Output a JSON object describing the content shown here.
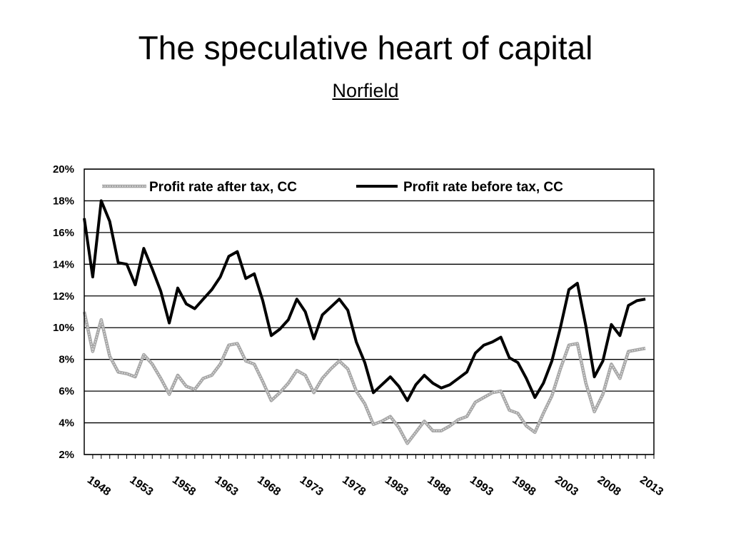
{
  "slide": {
    "title": "The speculative heart of capital",
    "subtitle": "Norfield"
  },
  "chart_data": {
    "type": "line",
    "title": "",
    "xlabel": "",
    "ylabel": "",
    "xlim": [
      1946,
      2013
    ],
    "ylim": [
      2,
      20
    ],
    "grid": true,
    "legend_position": "top",
    "y_ticks": [
      "2%",
      "4%",
      "6%",
      "8%",
      "10%",
      "12%",
      "14%",
      "16%",
      "18%",
      "20%"
    ],
    "x_ticks": [
      "1948",
      "1953",
      "1958",
      "1963",
      "1968",
      "1973",
      "1978",
      "1983",
      "1988",
      "1993",
      "1998",
      "2003",
      "2008",
      "2013"
    ],
    "x": [
      1946,
      1947,
      1948,
      1949,
      1950,
      1951,
      1952,
      1953,
      1954,
      1955,
      1956,
      1957,
      1958,
      1959,
      1960,
      1961,
      1962,
      1963,
      1964,
      1965,
      1966,
      1967,
      1968,
      1969,
      1970,
      1971,
      1972,
      1973,
      1974,
      1975,
      1976,
      1977,
      1978,
      1979,
      1980,
      1981,
      1982,
      1983,
      1984,
      1985,
      1986,
      1987,
      1988,
      1989,
      1990,
      1991,
      1992,
      1993,
      1994,
      1995,
      1996,
      1997,
      1998,
      1999,
      2000,
      2001,
      2002,
      2003,
      2004,
      2005,
      2006,
      2007,
      2008,
      2009,
      2010,
      2011,
      2012
    ],
    "series": [
      {
        "name": "Profit rate after tax, CC",
        "color": "#a6a6a6",
        "values": [
          11.0,
          8.5,
          10.5,
          8.2,
          7.2,
          7.1,
          6.9,
          8.3,
          7.7,
          6.8,
          5.8,
          7.0,
          6.3,
          6.1,
          6.8,
          7.0,
          7.7,
          8.9,
          9.0,
          7.9,
          7.7,
          6.6,
          5.4,
          5.9,
          6.5,
          7.3,
          7.0,
          5.9,
          6.8,
          7.4,
          7.9,
          7.4,
          6.0,
          5.2,
          3.9,
          4.1,
          4.4,
          3.7,
          2.7,
          3.4,
          4.1,
          3.5,
          3.5,
          3.8,
          4.2,
          4.4,
          5.3,
          5.6,
          5.9,
          6.0,
          4.8,
          4.6,
          3.8,
          3.4,
          4.6,
          5.7,
          7.4,
          8.9,
          9.0,
          6.5,
          4.7,
          5.8,
          7.7,
          6.8,
          8.5,
          8.6,
          8.7
        ]
      },
      {
        "name": "Profit rate before tax, CC",
        "color": "#000000",
        "values": [
          16.9,
          13.2,
          18.0,
          16.7,
          14.1,
          14.0,
          12.7,
          15.0,
          13.7,
          12.3,
          10.3,
          12.5,
          11.5,
          11.2,
          11.8,
          12.4,
          13.2,
          14.5,
          14.8,
          13.1,
          13.4,
          11.7,
          9.5,
          9.9,
          10.5,
          11.8,
          11.0,
          9.3,
          10.8,
          11.3,
          11.8,
          11.1,
          9.1,
          7.8,
          5.9,
          6.4,
          6.9,
          6.3,
          5.4,
          6.4,
          7.0,
          6.5,
          6.2,
          6.4,
          6.8,
          7.2,
          8.4,
          8.9,
          9.1,
          9.4,
          8.1,
          7.8,
          6.8,
          5.6,
          6.5,
          7.9,
          10.0,
          12.4,
          12.8,
          10.1,
          6.9,
          7.9,
          10.2,
          9.5,
          11.4,
          11.7,
          11.8
        ]
      }
    ]
  }
}
